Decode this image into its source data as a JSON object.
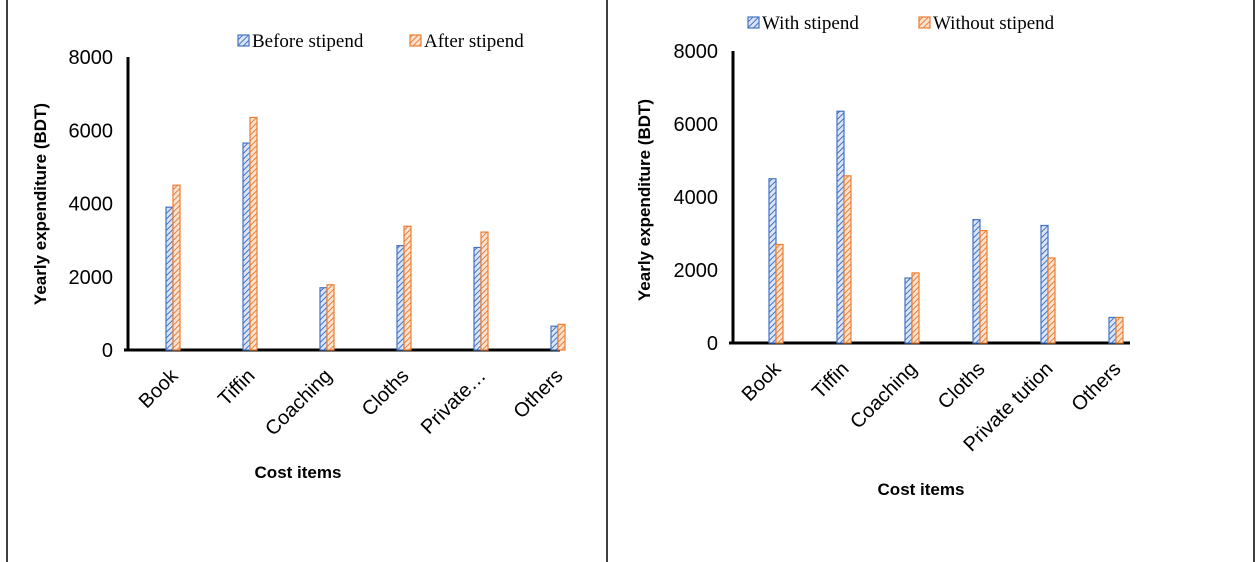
{
  "colors": {
    "blue": "#4472C4",
    "orange": "#ED7D31"
  },
  "chart_data": [
    {
      "type": "bar",
      "categories": [
        "Book",
        "Tiffin",
        "Coaching",
        "Cloths",
        "Private…",
        "Others"
      ],
      "series": [
        {
          "name": "Before stipend",
          "values": [
            3900,
            5650,
            1700,
            2850,
            2800,
            650
          ]
        },
        {
          "name": "After stipend",
          "values": [
            4500,
            6350,
            1780,
            3380,
            3220,
            700
          ]
        }
      ],
      "xlabel": "Cost items",
      "ylabel": "Yearly expenditure (BDT)",
      "ylim": [
        0,
        8000
      ],
      "yticks": [
        0,
        2000,
        4000,
        6000,
        8000
      ],
      "legend": "top-right",
      "grid": false
    },
    {
      "type": "bar",
      "categories": [
        "Book",
        "Tiffin",
        "Coaching",
        "Cloths",
        "Private tution",
        "Others"
      ],
      "series": [
        {
          "name": "With stipend",
          "values": [
            4500,
            6350,
            1780,
            3380,
            3220,
            700
          ]
        },
        {
          "name": "Without stipend",
          "values": [
            2700,
            4580,
            1920,
            3080,
            2330,
            700
          ]
        }
      ],
      "xlabel": "Cost items",
      "ylabel": "Yearly expenditure (BDT)",
      "ylim": [
        0,
        8000
      ],
      "yticks": [
        0,
        2000,
        4000,
        6000,
        8000
      ],
      "legend": "top",
      "grid": false
    }
  ]
}
